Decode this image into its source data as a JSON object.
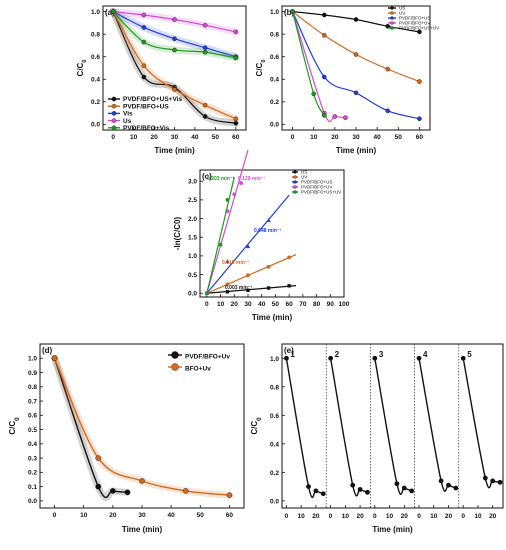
{
  "chart_data": [
    {
      "panel": "(a)",
      "type": "line",
      "xlabel": "Time (min)",
      "ylabel": "C/C0",
      "xlim": [
        -5,
        65
      ],
      "ylim": [
        -0.05,
        1.05
      ],
      "xticks": [
        0,
        10,
        20,
        30,
        40,
        50,
        60
      ],
      "yticks": [
        0.0,
        0.2,
        0.4,
        0.6,
        0.8,
        1.0
      ],
      "legend_position": "bottom-left",
      "series": [
        {
          "name": "PVDF/BFO+US+Vis",
          "color": "#111111",
          "x": [
            0,
            15,
            30,
            45,
            60
          ],
          "y": [
            1.0,
            0.42,
            0.33,
            0.07,
            0.01
          ]
        },
        {
          "name": "PVDF/BFO+US",
          "color": "#d2691e",
          "x": [
            0,
            15,
            30,
            45,
            60
          ],
          "y": [
            1.0,
            0.52,
            0.31,
            0.17,
            0.05
          ]
        },
        {
          "name": "Vis",
          "color": "#1f3fd8",
          "x": [
            0,
            15,
            30,
            45,
            60
          ],
          "y": [
            1.0,
            0.86,
            0.76,
            0.68,
            0.6
          ]
        },
        {
          "name": "Us",
          "color": "#d24bd2",
          "x": [
            0,
            15,
            30,
            45,
            60
          ],
          "y": [
            1.0,
            0.97,
            0.93,
            0.88,
            0.82
          ]
        },
        {
          "name": "PVDF/BFO+Vis",
          "color": "#1f9a1f",
          "x": [
            0,
            15,
            30,
            45,
            60
          ],
          "y": [
            1.0,
            0.73,
            0.66,
            0.64,
            0.59
          ]
        }
      ]
    },
    {
      "panel": "(b)",
      "type": "line",
      "xlabel": "Time (min)",
      "ylabel": "C/C0",
      "xlim": [
        -5,
        65
      ],
      "ylim": [
        -0.05,
        1.05
      ],
      "xticks": [
        0,
        10,
        20,
        30,
        40,
        50,
        60
      ],
      "yticks": [
        0.0,
        0.2,
        0.4,
        0.6,
        0.8,
        1.0
      ],
      "legend_position": "top-right",
      "series": [
        {
          "name": "US",
          "color": "#111111",
          "x": [
            0,
            15,
            30,
            45,
            60
          ],
          "y": [
            1.0,
            0.97,
            0.93,
            0.87,
            0.82
          ]
        },
        {
          "name": "UV",
          "color": "#d2691e",
          "x": [
            0,
            15,
            30,
            45,
            60
          ],
          "y": [
            1.0,
            0.79,
            0.62,
            0.49,
            0.38
          ]
        },
        {
          "name": "PVDF/BFO+US",
          "color": "#1f3fd8",
          "x": [
            0,
            15,
            30,
            45,
            60
          ],
          "y": [
            1.0,
            0.42,
            0.28,
            0.12,
            0.05
          ]
        },
        {
          "name": "PVDF/BFO+UV",
          "color": "#d24bd2",
          "x": [
            0,
            15,
            20,
            25
          ],
          "y": [
            1.0,
            0.1,
            0.07,
            0.06
          ]
        },
        {
          "name": "PVDF/BFO+US+UV",
          "color": "#1f9a1f",
          "x": [
            0,
            10,
            15
          ],
          "y": [
            1.0,
            0.27,
            0.08
          ]
        }
      ]
    },
    {
      "panel": "(c)",
      "type": "scatter",
      "xlabel": "Time (min)",
      "ylabel": "-ln(C/C0)",
      "xlim": [
        -5,
        100
      ],
      "ylim": [
        -0.1,
        3.3
      ],
      "xticks": [
        0,
        10,
        20,
        30,
        40,
        50,
        60,
        70,
        80,
        90,
        100
      ],
      "yticks": [
        0.0,
        0.5,
        1.0,
        1.5,
        2.0,
        2.5,
        3.0
      ],
      "legend_position": "top-right",
      "series": [
        {
          "name": "US",
          "color": "#111111",
          "rate": "0.003 min⁻¹",
          "x": [
            0,
            15,
            30,
            45,
            60
          ],
          "y": [
            0.0,
            0.04,
            0.08,
            0.14,
            0.2
          ]
        },
        {
          "name": "UV",
          "color": "#d2691e",
          "rate": "0.016 min⁻¹",
          "x": [
            0,
            15,
            30,
            45,
            60
          ],
          "y": [
            0.0,
            0.24,
            0.48,
            0.71,
            0.96
          ]
        },
        {
          "name": "PVDF/BFO+US",
          "color": "#1f3fd8",
          "rate": "0.048 min⁻¹",
          "x": [
            0,
            15,
            30,
            45
          ],
          "y": [
            0.0,
            0.85,
            1.25,
            1.95
          ]
        },
        {
          "name": "PVDF/BFO+UV",
          "color": "#d24bd2",
          "rate": "0.129 min⁻¹",
          "x": [
            0,
            15,
            20,
            25
          ],
          "y": [
            0.0,
            2.2,
            2.65,
            2.95
          ]
        },
        {
          "name": "PVDF/BFO+US+UV",
          "color": "#1f9a1f",
          "rate": "0.203 min⁻¹",
          "x": [
            0,
            10,
            15
          ],
          "y": [
            0.0,
            1.3,
            2.5
          ]
        }
      ]
    },
    {
      "panel": "(d)",
      "type": "line",
      "xlabel": "Time (min)",
      "ylabel": "C/C0",
      "xlim": [
        -5,
        65
      ],
      "ylim": [
        -0.05,
        1.1
      ],
      "xticks": [
        0,
        10,
        20,
        30,
        40,
        50,
        60
      ],
      "yticks": [
        0.0,
        0.1,
        0.2,
        0.3,
        0.4,
        0.5,
        0.6,
        0.7,
        0.8,
        0.9,
        1.0
      ],
      "legend_position": "top-right",
      "series": [
        {
          "name": "PVDF/BFO+Uv",
          "color": "#111111",
          "x": [
            0,
            15,
            20,
            25
          ],
          "y": [
            1.0,
            0.1,
            0.07,
            0.06
          ]
        },
        {
          "name": "BFO+Uv",
          "color": "#d2691e",
          "x": [
            0,
            15,
            30,
            45,
            60
          ],
          "y": [
            1.0,
            0.3,
            0.14,
            0.07,
            0.04
          ]
        }
      ]
    },
    {
      "panel": "(e)",
      "type": "line",
      "xlabel": "Time (min)",
      "ylabel": "C/C0",
      "ylim": [
        -0.05,
        1.1
      ],
      "yticks": [
        0.0,
        0.2,
        0.4,
        0.6,
        0.8,
        1.0
      ],
      "cycle_xticks": [
        0,
        10,
        20
      ],
      "cycles": [
        {
          "label": "1",
          "x": [
            0,
            15,
            20,
            25
          ],
          "y": [
            1.0,
            0.1,
            0.07,
            0.05
          ]
        },
        {
          "label": "2",
          "x": [
            0,
            15,
            20,
            25
          ],
          "y": [
            1.0,
            0.11,
            0.08,
            0.06
          ]
        },
        {
          "label": "3",
          "x": [
            0,
            15,
            20,
            25
          ],
          "y": [
            1.0,
            0.12,
            0.09,
            0.07
          ]
        },
        {
          "label": "4",
          "x": [
            0,
            15,
            20,
            25
          ],
          "y": [
            1.0,
            0.14,
            0.11,
            0.09
          ]
        },
        {
          "label": "5",
          "x": [
            0,
            15,
            20,
            25
          ],
          "y": [
            1.0,
            0.16,
            0.14,
            0.13
          ]
        }
      ],
      "line_color": "#111111"
    }
  ]
}
